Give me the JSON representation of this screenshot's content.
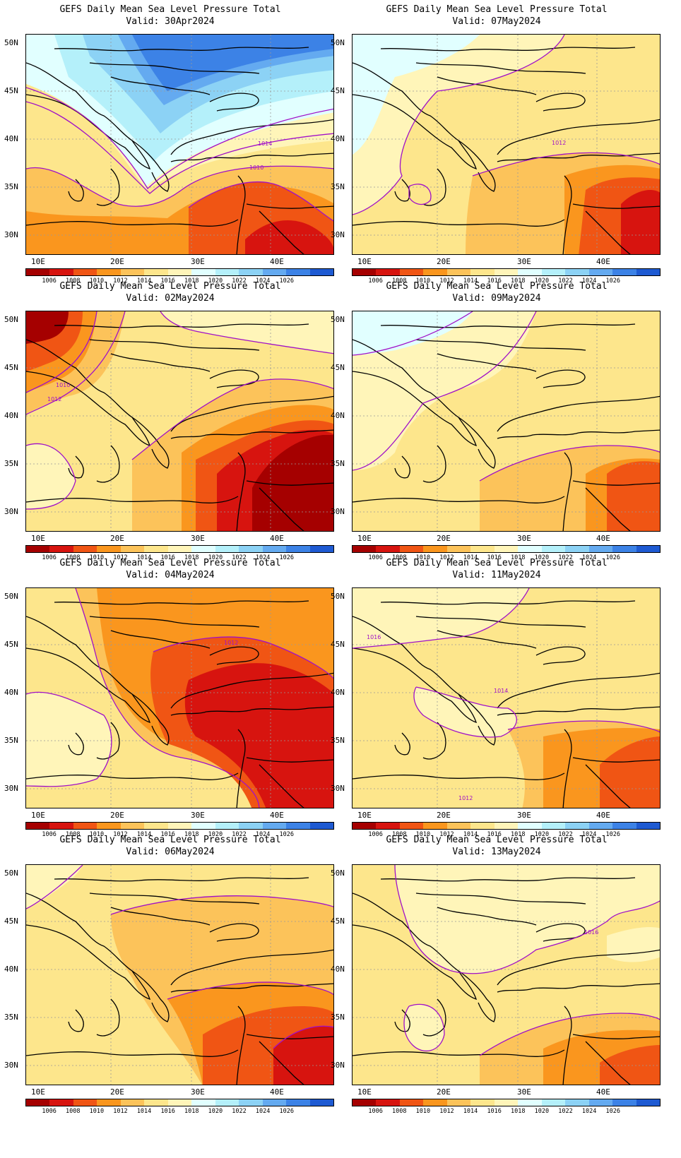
{
  "title_line": "GEFS Daily Mean Sea Level Pressure Total",
  "lat_labels": [
    "50N",
    "45N",
    "40N",
    "35N",
    "30N"
  ],
  "lon_labels": [
    "10E",
    "20E",
    "30E",
    "40E"
  ],
  "colorbar": {
    "labels": [
      "1006",
      "1008",
      "1010",
      "1012",
      "1014",
      "1016",
      "1018",
      "1020",
      "1022",
      "1024",
      "1026"
    ],
    "colors": [
      "#a50000",
      "#d7140f",
      "#f05514",
      "#fa961e",
      "#fcc35a",
      "#fde68c",
      "#fff5b9",
      "#e1ffff",
      "#b4f0fa",
      "#8cd2f5",
      "#64aaf0",
      "#3c82e6",
      "#1e5ad2"
    ]
  },
  "panels": [
    {
      "valid": "Valid: 30Apr2024",
      "contour_labels": [
        "1014",
        "1010"
      ]
    },
    {
      "valid": "Valid: 07May2024",
      "contour_labels": [
        "1012"
      ]
    },
    {
      "valid": "Valid: 02May2024",
      "contour_labels": [
        "1010",
        "1012"
      ]
    },
    {
      "valid": "Valid: 09May2024",
      "contour_labels": []
    },
    {
      "valid": "Valid: 04May2024",
      "contour_labels": [
        "1012"
      ]
    },
    {
      "valid": "Valid: 11May2024",
      "contour_labels": [
        "1016",
        "1014",
        "1012"
      ]
    },
    {
      "valid": "Valid: 06May2024",
      "contour_labels": []
    },
    {
      "valid": "Valid: 13May2024",
      "contour_labels": [
        "1016"
      ]
    }
  ]
}
